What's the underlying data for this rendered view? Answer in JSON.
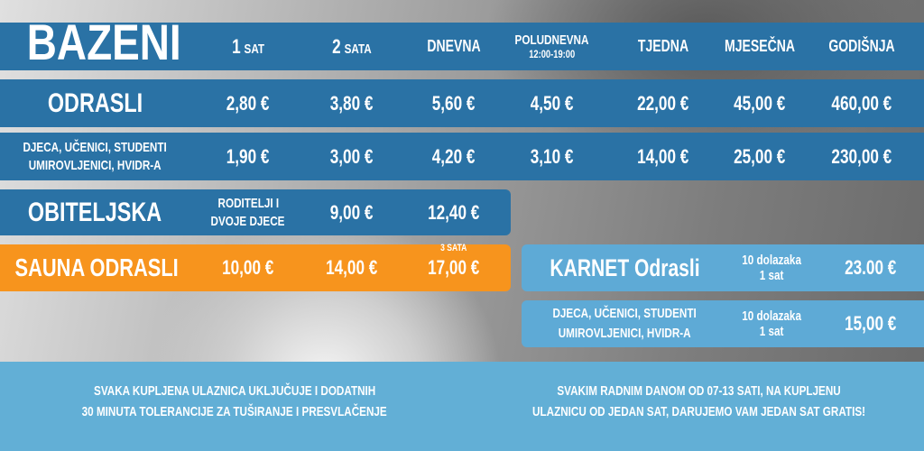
{
  "title": "BAZENI",
  "columns": [
    {
      "main": "1",
      "sub": "SAT"
    },
    {
      "main": "2",
      "sub": "SATA"
    },
    {
      "main": "DNEVNA",
      "sub": ""
    },
    {
      "main": "POLUDNEVNA",
      "sub": "12:00-19:00"
    },
    {
      "main": "TJEDNA",
      "sub": ""
    },
    {
      "main": "MJESEČNA",
      "sub": ""
    },
    {
      "main": "GODIŠNJA",
      "sub": ""
    }
  ],
  "rows": [
    {
      "label": "ODRASLI",
      "prices": [
        "2,80 €",
        "3,80 €",
        "5,60 €",
        "4,50 €",
        "22,00 €",
        "45,00 €",
        "460,00 €"
      ]
    },
    {
      "label_line1": "DJECA, UČENICI, STUDENTI",
      "label_line2": "UMIROVLJENICI, HVIDR-A",
      "prices": [
        "1,90 €",
        "3,00 €",
        "4,20 €",
        "3,10 €",
        "14,00 €",
        "25,00 €",
        "230,00 €"
      ]
    }
  ],
  "family": {
    "label": "OBITELJSKA",
    "desc_line1": "RODITELJI I",
    "desc_line2": "DVOJE DJECE",
    "prices": [
      "9,00 €",
      "12,40 €"
    ]
  },
  "sauna": {
    "label": "SAUNA ODRASLI",
    "prices": [
      "10,00 €",
      "14,00 €",
      "17,00 €"
    ],
    "note": "3 SATA"
  },
  "karnet": [
    {
      "label": "KARNET Odrasli",
      "desc_line1": "10 dolazaka",
      "desc_line2": "1 sat",
      "price": "23.00 €"
    },
    {
      "label_line1": "DJECA, UČENICI, STUDENTI",
      "label_line2": "UMIROVLJENICI, HVIDR-A",
      "desc_line1": "10 dolazaka",
      "desc_line2": "1 sat",
      "price": "15,00 €"
    }
  ],
  "footer": {
    "left_line1": "SVAKA KUPLJENA ULAZNICA UKLJUČUJE I DODATNIH",
    "left_line2": "30 MINUTA TOLERANCIJE ZA TUŠIRANJE I PRESVLAČENJE",
    "right_line1": "SVAKIM RADNIM DANOM OD 07-13 SATI, NA KUPLJENU",
    "right_line2": "ULAZNICU OD JEDAN SAT, DARUJEMO VAM JEDAN SAT GRATIS!"
  },
  "colors": {
    "blue": "#2a72a5",
    "orange": "#f7941d",
    "light_blue": "#5eaad6",
    "footer": "#62afd6"
  }
}
